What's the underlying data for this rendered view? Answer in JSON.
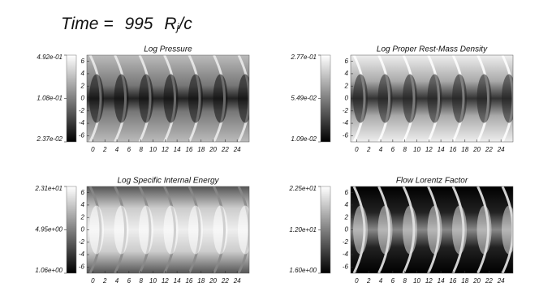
{
  "chart_data": {
    "type": "heatmap-grid",
    "title": {
      "label": "Time =",
      "time": 995,
      "unit": "R",
      "unit_sub": "j",
      "unit_rest": "/c"
    },
    "panels": [
      {
        "title": "Log Pressure",
        "xlim": [
          -1,
          26
        ],
        "ylim": [
          -7,
          7
        ],
        "xticks": [
          0,
          2,
          4,
          6,
          8,
          10,
          12,
          14,
          16,
          18,
          20,
          22,
          24
        ],
        "yticks": [
          -6,
          -4,
          -2,
          0,
          2,
          4,
          6
        ],
        "colorbar": {
          "scale": "log",
          "lim": [
            0.0237,
            0.492
          ],
          "ticks": [
            {
              "value": 0.492,
              "label": "4.92e-01"
            },
            {
              "value": 0.108,
              "label": "1.08e-01"
            },
            {
              "value": 0.0237,
              "label": "2.37e-02"
            }
          ]
        }
      },
      {
        "title": "Log Proper Rest-Mass Density",
        "xlim": [
          -1,
          26
        ],
        "ylim": [
          -7,
          7
        ],
        "xticks": [
          0,
          2,
          4,
          6,
          8,
          10,
          12,
          14,
          16,
          18,
          20,
          22,
          24
        ],
        "yticks": [
          -6,
          -4,
          -2,
          0,
          2,
          4,
          6
        ],
        "colorbar": {
          "scale": "log",
          "lim": [
            0.0109,
            0.277
          ],
          "ticks": [
            {
              "value": 0.277,
              "label": "2.77e-01"
            },
            {
              "value": 0.0549,
              "label": "5.49e-02"
            },
            {
              "value": 0.0109,
              "label": "1.09e-02"
            }
          ]
        }
      },
      {
        "title": "Log Specific Internal Energy",
        "xlim": [
          -1,
          26
        ],
        "ylim": [
          -7,
          7
        ],
        "xticks": [
          0,
          2,
          4,
          6,
          8,
          10,
          12,
          14,
          16,
          18,
          20,
          22,
          24
        ],
        "yticks": [
          -6,
          -4,
          -2,
          0,
          2,
          4,
          6
        ],
        "colorbar": {
          "scale": "log",
          "lim": [
            1.06,
            23.1
          ],
          "ticks": [
            {
              "value": 23.1,
              "label": "2.31e+01"
            },
            {
              "value": 4.95,
              "label": "4.95e+00"
            },
            {
              "value": 1.06,
              "label": "1.06e+00"
            }
          ]
        }
      },
      {
        "title": "Flow Lorentz Factor",
        "xlim": [
          -1,
          26
        ],
        "ylim": [
          -7,
          7
        ],
        "xticks": [
          0,
          2,
          4,
          6,
          8,
          10,
          12,
          14,
          16,
          18,
          20,
          22,
          24
        ],
        "yticks": [
          -6,
          -4,
          -2,
          0,
          2,
          4,
          6
        ],
        "colorbar": {
          "scale": "linear",
          "lim": [
            1.6,
            22.5
          ],
          "ticks": [
            {
              "value": 22.5,
              "label": "2.25e+01"
            },
            {
              "value": 12.0,
              "label": "1.20e+01"
            },
            {
              "value": 1.6,
              "label": "1.60e+00"
            }
          ]
        }
      }
    ]
  }
}
